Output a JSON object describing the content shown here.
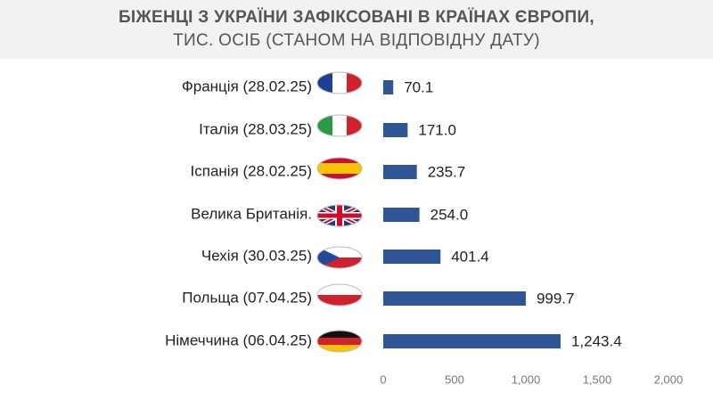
{
  "chart_data": {
    "type": "bar",
    "orientation": "horizontal",
    "title": "БІЖЕНЦІ З УКРАЇНИ ЗАФІКСОВАНІ В КРАЇНАХ ЄВРОПИ,",
    "subtitle": "ТИС. ОСІБ (СТАНОМ НА ВІДПОВІДНУ ДАТУ)",
    "categories": [
      "Франція (28.02.25)",
      "Італія (28.03.25)",
      "Іспанія (28.02.25)",
      "Велика Британія.",
      "Чехія (30.03.25)",
      "Польща (07.04.25)",
      "Німеччина (06.04.25)"
    ],
    "values": [
      70.1,
      171.0,
      235.7,
      254.0,
      401.4,
      999.7,
      1243.4
    ],
    "value_labels": [
      "70.1",
      "171.0",
      "235.7",
      "254.0",
      "401.4",
      "999.7",
      "1,243.4"
    ],
    "color": "#2f5597",
    "xlim": [
      0,
      2000
    ],
    "xticks": [
      0,
      500,
      {
        "value": 1000,
        "label": "1,000"
      },
      {
        "value": 1500,
        "label": "1,500"
      },
      {
        "value": 2000,
        "label": "2,000"
      }
    ]
  }
}
